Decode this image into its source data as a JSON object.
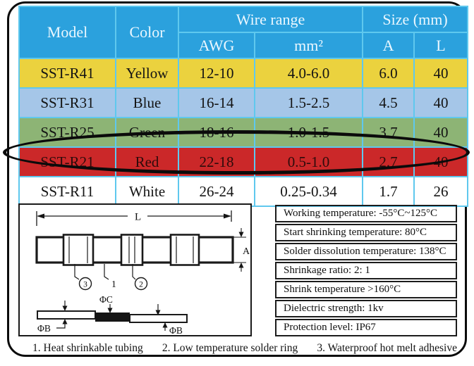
{
  "colors": {
    "header_blue": "#2BA1DD",
    "header_text": "#EAF7FF",
    "grid_line": "#5FC8EE",
    "frame_black": "#0B0B0B",
    "body_text": "#141414",
    "row_yellow": "#EBD23E",
    "row_blue": "#A5C6E8",
    "row_green": "#8DB475",
    "row_red": "#CB2829",
    "row_white": "#FFFFFF"
  },
  "table": {
    "headers": {
      "model": "Model",
      "color": "Color",
      "wire_range": "Wire range",
      "awg": "AWG",
      "mm2": "mm²",
      "size_mm": "Size (mm)",
      "a": "A",
      "l": "L"
    },
    "rows": [
      {
        "model": "SST-R41",
        "color": "Yellow",
        "awg": "12-10",
        "mm2": "4.0-6.0",
        "a": "6.0",
        "l": "40",
        "bg": "#EBD23E",
        "fg": "#141414",
        "highlighted": false
      },
      {
        "model": "SST-R31",
        "color": "Blue",
        "awg": "16-14",
        "mm2": "1.5-2.5",
        "a": "4.5",
        "l": "40",
        "bg": "#A5C6E8",
        "fg": "#141414",
        "highlighted": false
      },
      {
        "model": "SST-R25",
        "color": "Green",
        "awg": "18-16",
        "mm2": "1.0-1.5",
        "a": "3.7",
        "l": "40",
        "bg": "#8DB475",
        "fg": "#141414",
        "highlighted": false
      },
      {
        "model": "SST-R21",
        "color": "Red",
        "awg": "22-18",
        "mm2": "0.5-1.0",
        "a": "2.7",
        "l": "40",
        "bg": "#CB2829",
        "fg": "#2E0B0B",
        "highlighted": true
      },
      {
        "model": "SST-R11",
        "color": "White",
        "awg": "26-24",
        "mm2": "0.25-0.34",
        "a": "1.7",
        "l": "26",
        "bg": "#FFFFFF",
        "fg": "#141414",
        "highlighted": false
      }
    ]
  },
  "highlight": {
    "shape": "ellipse",
    "row_model": "SST-R21"
  },
  "specs": {
    "items": [
      "Working temperature: -55°C~125°C",
      "Start shrinking temperature: 80°C",
      "Solder dissolution temperature: 138°C",
      "Shrinkage ratio: 2: 1",
      "Shrink temperature >160°C",
      "Dielectric strength: 1kv",
      "Protection level: IP67"
    ]
  },
  "diagram": {
    "labels": {
      "l": "L",
      "a": "A",
      "part1": "1",
      "part2": "2",
      "part3": "3",
      "phi_c": "ΦC",
      "phi_b_left": "ΦB",
      "phi_b_right": "ΦB"
    }
  },
  "legend": {
    "items": [
      "1. Heat shrinkable tubing",
      "2. Low temperature solder ring",
      "3. Waterproof hot melt adhesive"
    ]
  }
}
